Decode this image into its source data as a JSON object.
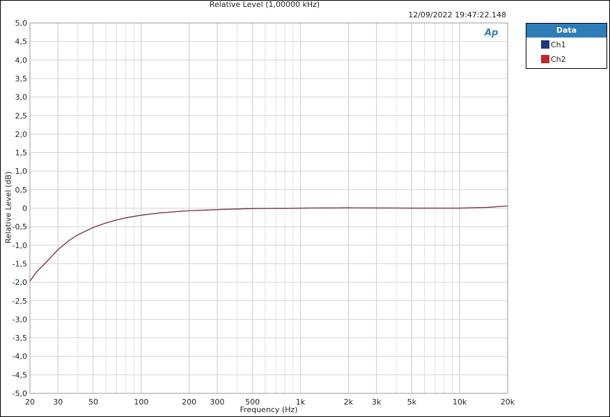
{
  "chart_data": {
    "type": "line",
    "title": "Relative Level (1,00000 kHz)",
    "timestamp": "12/09/2022 19:47:22.148",
    "xlabel": "Frequency (Hz)",
    "ylabel": "Relative Level (dB)",
    "x_scale": "log",
    "xlim": [
      20,
      20000
    ],
    "ylim": [
      -5,
      5
    ],
    "grid": true,
    "x_ticks": [
      20,
      30,
      50,
      100,
      200,
      300,
      500,
      1000,
      2000,
      3000,
      5000,
      10000,
      20000
    ],
    "x_tick_labels": [
      "20",
      "30",
      "50",
      "100",
      "200",
      "300",
      "500",
      "1k",
      "2k",
      "3k",
      "5k",
      "10k",
      "20k"
    ],
    "y_ticks": [
      5,
      4.5,
      4,
      3.5,
      3,
      2.5,
      2,
      1.5,
      1,
      0.5,
      0,
      -0.5,
      -1,
      -1.5,
      -2,
      -2.5,
      -3,
      -3.5,
      -4,
      -4.5,
      -5
    ],
    "y_tick_labels": [
      "5,0",
      "4,5",
      "4,0",
      "3,5",
      "3,0",
      "2,5",
      "2,0",
      "1,5",
      "1,0",
      "0,5",
      "0",
      "-0,5",
      "-1,0",
      "-1,5",
      "-2,0",
      "-2,5",
      "-3,0",
      "-3,5",
      "-4,0",
      "-4,5",
      "-5,0"
    ],
    "legend": {
      "title": "Data",
      "placement": "right-outside"
    },
    "series": [
      {
        "name": "Ch1",
        "color": "#1f3a7a",
        "x": [
          20,
          22,
          25,
          30,
          35,
          40,
          50,
          60,
          70,
          80,
          100,
          130,
          200,
          300,
          500,
          1000,
          2000,
          5000,
          10000,
          15000,
          20000
        ],
        "y": [
          -1.97,
          -1.72,
          -1.48,
          -1.12,
          -0.88,
          -0.72,
          -0.52,
          -0.4,
          -0.32,
          -0.26,
          -0.19,
          -0.13,
          -0.07,
          -0.04,
          -0.01,
          0.0,
          0.01,
          0.0,
          0.0,
          0.02,
          0.06
        ]
      },
      {
        "name": "Ch2",
        "color": "#c0282a",
        "x": [
          20,
          22,
          25,
          30,
          35,
          40,
          50,
          60,
          70,
          80,
          100,
          130,
          200,
          300,
          500,
          1000,
          2000,
          5000,
          10000,
          15000,
          20000
        ],
        "y": [
          -1.97,
          -1.72,
          -1.48,
          -1.12,
          -0.88,
          -0.72,
          -0.52,
          -0.4,
          -0.32,
          -0.26,
          -0.19,
          -0.13,
          -0.07,
          -0.04,
          -0.01,
          0.0,
          0.01,
          0.0,
          0.0,
          0.02,
          0.06
        ]
      }
    ]
  },
  "logo_text": "AP"
}
